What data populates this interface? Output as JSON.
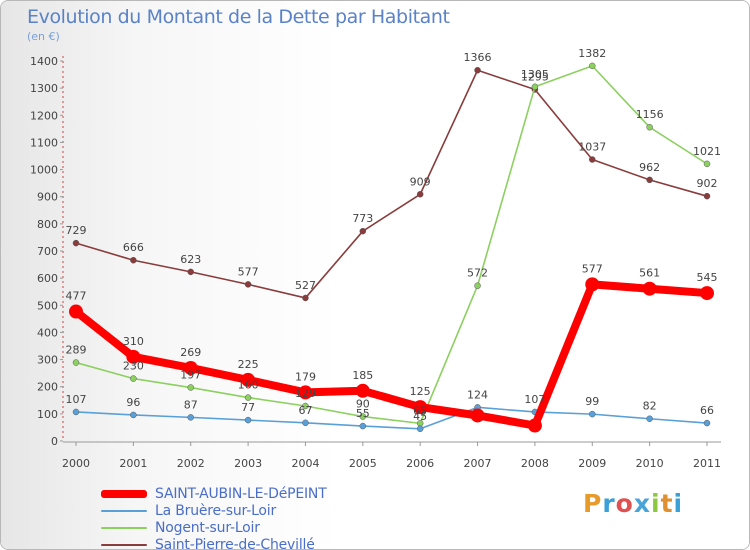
{
  "title": "Evolution du Montant de la Dette par Habitant",
  "unit_label": "(en €)",
  "logo": {
    "letters": [
      "P",
      "r",
      "o",
      "x",
      "i",
      "t",
      "i"
    ],
    "colors": [
      "#e89a2a",
      "#3aa0d8",
      "#e05050",
      "#4aa4d8",
      "#8cc840",
      "#e09030",
      "#3aa0d8"
    ]
  },
  "chart_data": {
    "type": "line",
    "title": "Evolution du Montant de la Dette par Habitant",
    "ylabel": "(en €)",
    "xlabel": "",
    "x": [
      "2000",
      "2001",
      "2002",
      "2003",
      "2004",
      "2005",
      "2006",
      "2007",
      "2008",
      "2009",
      "2010",
      "2011"
    ],
    "ylim": [
      0,
      1400
    ],
    "yticks": [
      0,
      100,
      200,
      300,
      400,
      500,
      600,
      700,
      800,
      900,
      1000,
      1100,
      1200,
      1300,
      1400
    ],
    "grid": false,
    "legend_position": "bottom-left",
    "series": [
      {
        "name": "SAINT-AUBIN-LE-DéPEINT",
        "color": "#ff0000",
        "values": [
          477,
          310,
          269,
          225,
          179,
          185,
          125,
          94,
          57,
          577,
          561,
          545
        ],
        "labels": [
          "477",
          "310",
          "269",
          "225",
          "179",
          "185",
          "125",
          "",
          "",
          "577",
          "561",
          "545"
        ]
      },
      {
        "name": "La Bruère-sur-Loir",
        "color": "#5aa0d8",
        "values": [
          107,
          96,
          87,
          77,
          67,
          55,
          45,
          124,
          107,
          99,
          82,
          66
        ],
        "labels": [
          "107",
          "96",
          "87",
          "77",
          "67",
          "55",
          "45",
          "124",
          "107",
          "99",
          "82",
          "66"
        ]
      },
      {
        "name": "Nogent-sur-Loir",
        "color": "#8cd060",
        "values": [
          289,
          230,
          197,
          160,
          129,
          90,
          65,
          572,
          1305,
          1382,
          1156,
          1021
        ],
        "labels": [
          "289",
          "230",
          "197",
          "160",
          "129",
          "90",
          "65",
          "572",
          "1305",
          "1382",
          "1156",
          "1021"
        ]
      },
      {
        "name": "Saint-Pierre-de-Chevillé",
        "color": "#8a3c3c",
        "values": [
          729,
          666,
          623,
          577,
          527,
          773,
          909,
          1366,
          1295,
          1037,
          962,
          902
        ],
        "labels": [
          "729",
          "666",
          "623",
          "577",
          "527",
          "773",
          "909",
          "1366",
          "1295",
          "1037",
          "962",
          "902"
        ]
      }
    ]
  }
}
